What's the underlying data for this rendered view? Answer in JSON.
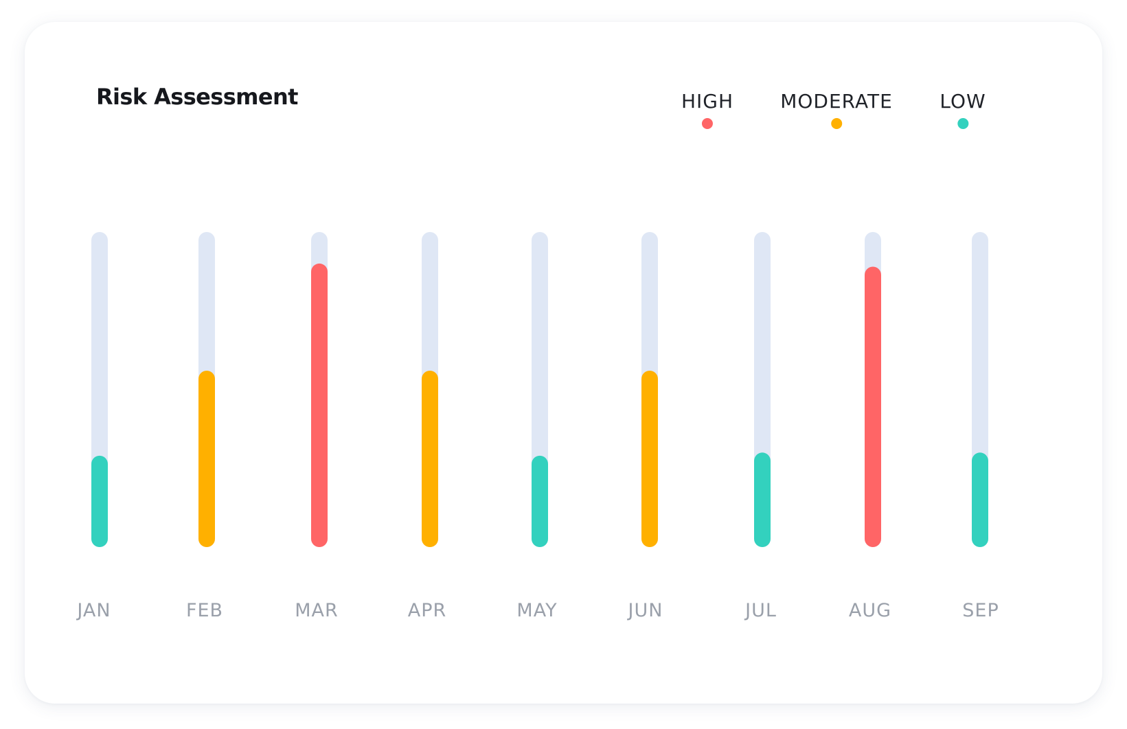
{
  "chart_data": {
    "type": "bar",
    "title": "Risk Assessment",
    "categories": [
      "JAN",
      "FEB",
      "MAR",
      "APR",
      "MAY",
      "JUN",
      "JUL",
      "AUG",
      "SEP"
    ],
    "values": [
      29,
      56,
      90,
      56,
      29,
      56,
      30,
      89,
      30
    ],
    "levels": [
      "LOW",
      "MODERATE",
      "HIGH",
      "MODERATE",
      "LOW",
      "MODERATE",
      "LOW",
      "HIGH",
      "LOW"
    ],
    "ylim": [
      0,
      100
    ],
    "grid": false,
    "legend_position": "top-right",
    "legend": [
      {
        "label": "HIGH",
        "color": "#ff6566"
      },
      {
        "label": "MODERATE",
        "color": "#ffb000"
      },
      {
        "label": "LOW",
        "color": "#33d1be"
      }
    ],
    "track_color": "#dfe7f5",
    "level_colors": {
      "HIGH": "#ff6566",
      "MODERATE": "#ffb000",
      "LOW": "#33d1be"
    }
  }
}
